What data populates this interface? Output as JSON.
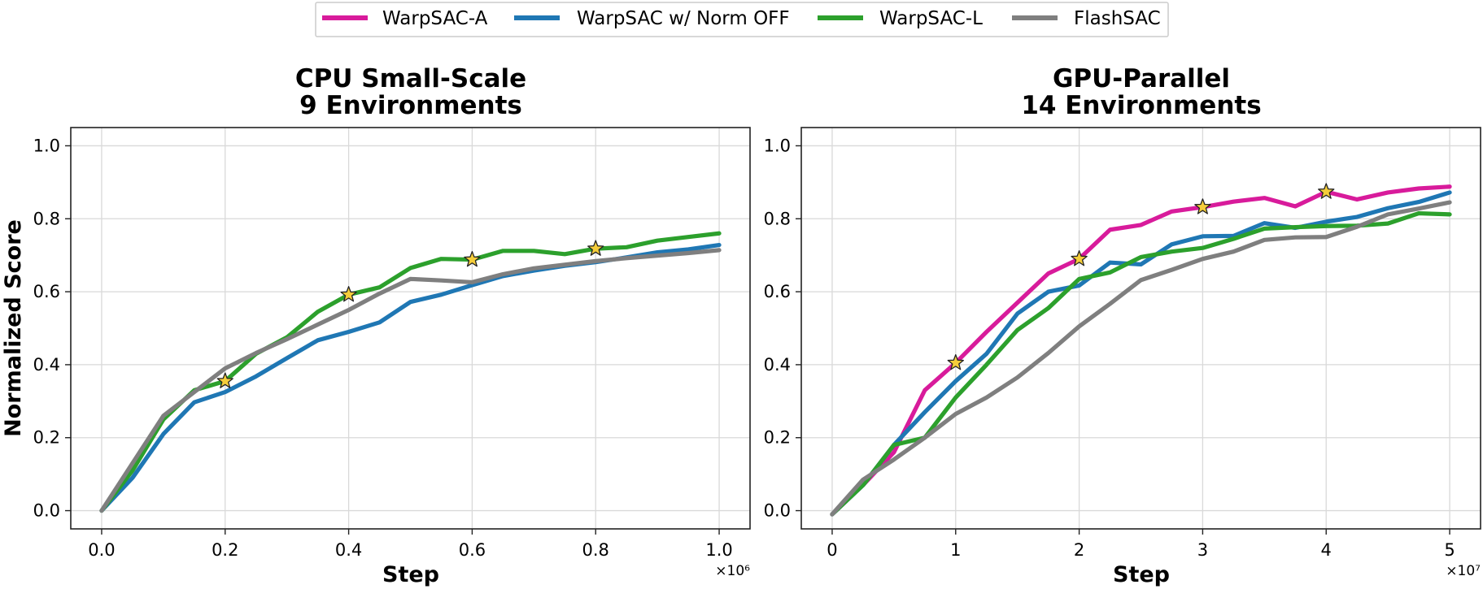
{
  "legend": [
    {
      "name": "WarpSAC-A",
      "color": "#d81b9b"
    },
    {
      "name": "WarpSAC w/ Norm OFF",
      "color": "#1f77b4"
    },
    {
      "name": "WarpSAC-L",
      "color": "#2ca02c"
    },
    {
      "name": "FlashSAC",
      "color": "#7f7f7f"
    }
  ],
  "chart_data": [
    {
      "type": "line",
      "title": "CPU Small-Scale",
      "subtitle": "9 Environments",
      "xlabel": "Step",
      "ylabel": "Normalized Score",
      "x_multiplier": "×10⁶",
      "xlim": [
        -0.05,
        1.05
      ],
      "ylim": [
        -0.05,
        1.05
      ],
      "xticks": [
        0.0,
        0.2,
        0.4,
        0.6,
        0.8,
        1.0
      ],
      "xtick_labels": [
        "0.0",
        "0.2",
        "0.4",
        "0.6",
        "0.8",
        "1.0"
      ],
      "yticks": [
        0.0,
        0.2,
        0.4,
        0.6,
        0.8,
        1.0
      ],
      "ytick_labels": [
        "0.0",
        "0.2",
        "0.4",
        "0.6",
        "0.8",
        "1.0"
      ],
      "grid": true,
      "series": [
        {
          "name": "WarpSAC w/ Norm OFF",
          "color": "#1f77b4",
          "x": [
            0,
            0.05,
            0.1,
            0.15,
            0.2,
            0.25,
            0.3,
            0.35,
            0.4,
            0.45,
            0.5,
            0.55,
            0.6,
            0.65,
            0.7,
            0.75,
            0.8,
            0.85,
            0.9,
            0.95,
            1.0
          ],
          "y": [
            0.0,
            0.09,
            0.21,
            0.297,
            0.325,
            0.368,
            0.418,
            0.467,
            0.49,
            0.516,
            0.572,
            0.592,
            0.618,
            0.643,
            0.658,
            0.671,
            0.681,
            0.694,
            0.708,
            0.716,
            0.728
          ]
        },
        {
          "name": "WarpSAC-L",
          "color": "#2ca02c",
          "x": [
            0,
            0.05,
            0.1,
            0.15,
            0.2,
            0.25,
            0.3,
            0.35,
            0.4,
            0.45,
            0.5,
            0.55,
            0.6,
            0.65,
            0.7,
            0.75,
            0.8,
            0.85,
            0.9,
            0.95,
            1.0
          ],
          "y": [
            0.0,
            0.11,
            0.25,
            0.33,
            0.355,
            0.43,
            0.475,
            0.545,
            0.592,
            0.612,
            0.665,
            0.69,
            0.688,
            0.712,
            0.712,
            0.703,
            0.718,
            0.722,
            0.74,
            0.75,
            0.76
          ]
        },
        {
          "name": "FlashSAC",
          "color": "#7f7f7f",
          "x": [
            0,
            0.05,
            0.1,
            0.15,
            0.2,
            0.25,
            0.3,
            0.35,
            0.4,
            0.45,
            0.5,
            0.55,
            0.6,
            0.65,
            0.7,
            0.75,
            0.8,
            0.85,
            0.9,
            0.95,
            1.0
          ],
          "y": [
            0.0,
            0.13,
            0.26,
            0.325,
            0.39,
            0.432,
            0.47,
            0.51,
            0.55,
            0.595,
            0.635,
            0.631,
            0.626,
            0.648,
            0.664,
            0.674,
            0.684,
            0.692,
            0.699,
            0.706,
            0.714
          ]
        }
      ],
      "stars": [
        {
          "series": "WarpSAC-L",
          "x": 0.2,
          "y": 0.355
        },
        {
          "series": "WarpSAC-L",
          "x": 0.4,
          "y": 0.592
        },
        {
          "series": "WarpSAC-L",
          "x": 0.6,
          "y": 0.688
        },
        {
          "series": "WarpSAC-L",
          "x": 0.8,
          "y": 0.718
        }
      ]
    },
    {
      "type": "line",
      "title": "GPU-Parallel",
      "subtitle": "14 Environments",
      "xlabel": "Step",
      "ylabel": "",
      "x_multiplier": "×10⁷",
      "xlim": [
        -2.5,
        52.5
      ],
      "ylim": [
        -0.05,
        1.05
      ],
      "xticks": [
        0,
        10,
        20,
        30,
        40,
        50
      ],
      "xtick_labels": [
        "0",
        "1",
        "2",
        "3",
        "4",
        "5"
      ],
      "yticks": [
        0.0,
        0.2,
        0.4,
        0.6,
        0.8,
        1.0
      ],
      "ytick_labels": [
        "0.0",
        "0.2",
        "0.4",
        "0.6",
        "0.8",
        "1.0"
      ],
      "grid": true,
      "series": [
        {
          "name": "WarpSAC-A",
          "color": "#d81b9b",
          "x": [
            0,
            2.5,
            5,
            7.5,
            10,
            12.5,
            15,
            17.5,
            20,
            22.5,
            25,
            27.5,
            30,
            32.5,
            35,
            37.5,
            40,
            42.5,
            45,
            47.5,
            50
          ],
          "y": [
            -0.01,
            0.07,
            0.16,
            0.33,
            0.405,
            0.49,
            0.57,
            0.65,
            0.69,
            0.77,
            0.783,
            0.82,
            0.832,
            0.847,
            0.857,
            0.834,
            0.874,
            0.853,
            0.872,
            0.883,
            0.888
          ]
        },
        {
          "name": "WarpSAC w/ Norm OFF",
          "color": "#1f77b4",
          "x": [
            0,
            2.5,
            5,
            7.5,
            10,
            12.5,
            15,
            17.5,
            20,
            22.5,
            25,
            27.5,
            30,
            32.5,
            35,
            37.5,
            40,
            42.5,
            45,
            47.5,
            50
          ],
          "y": [
            -0.01,
            0.07,
            0.18,
            0.27,
            0.355,
            0.43,
            0.54,
            0.6,
            0.617,
            0.68,
            0.675,
            0.73,
            0.752,
            0.753,
            0.788,
            0.775,
            0.792,
            0.805,
            0.829,
            0.846,
            0.872
          ]
        },
        {
          "name": "WarpSAC-L",
          "color": "#2ca02c",
          "x": [
            0,
            2.5,
            5,
            7.5,
            10,
            12.5,
            15,
            17.5,
            20,
            22.5,
            25,
            27.5,
            30,
            32.5,
            35,
            37.5,
            40,
            42.5,
            45,
            47.5,
            50
          ],
          "y": [
            -0.01,
            0.07,
            0.18,
            0.2,
            0.31,
            0.4,
            0.495,
            0.555,
            0.635,
            0.653,
            0.695,
            0.71,
            0.72,
            0.745,
            0.773,
            0.777,
            0.78,
            0.781,
            0.787,
            0.815,
            0.812
          ]
        },
        {
          "name": "FlashSAC",
          "color": "#7f7f7f",
          "x": [
            0,
            2.5,
            5,
            7.5,
            10,
            12.5,
            15,
            17.5,
            20,
            22.5,
            25,
            27.5,
            30,
            32.5,
            35,
            37.5,
            40,
            42.5,
            45,
            47.5,
            50
          ],
          "y": [
            -0.01,
            0.085,
            0.14,
            0.2,
            0.265,
            0.31,
            0.365,
            0.432,
            0.505,
            0.567,
            0.632,
            0.66,
            0.69,
            0.71,
            0.742,
            0.749,
            0.75,
            0.778,
            0.812,
            0.828,
            0.845
          ]
        }
      ],
      "stars": [
        {
          "series": "WarpSAC-A",
          "x": 10,
          "y": 0.405
        },
        {
          "series": "WarpSAC-A",
          "x": 20,
          "y": 0.69
        },
        {
          "series": "WarpSAC-A",
          "x": 30,
          "y": 0.832
        },
        {
          "series": "WarpSAC-A",
          "x": 40,
          "y": 0.874
        }
      ]
    }
  ]
}
